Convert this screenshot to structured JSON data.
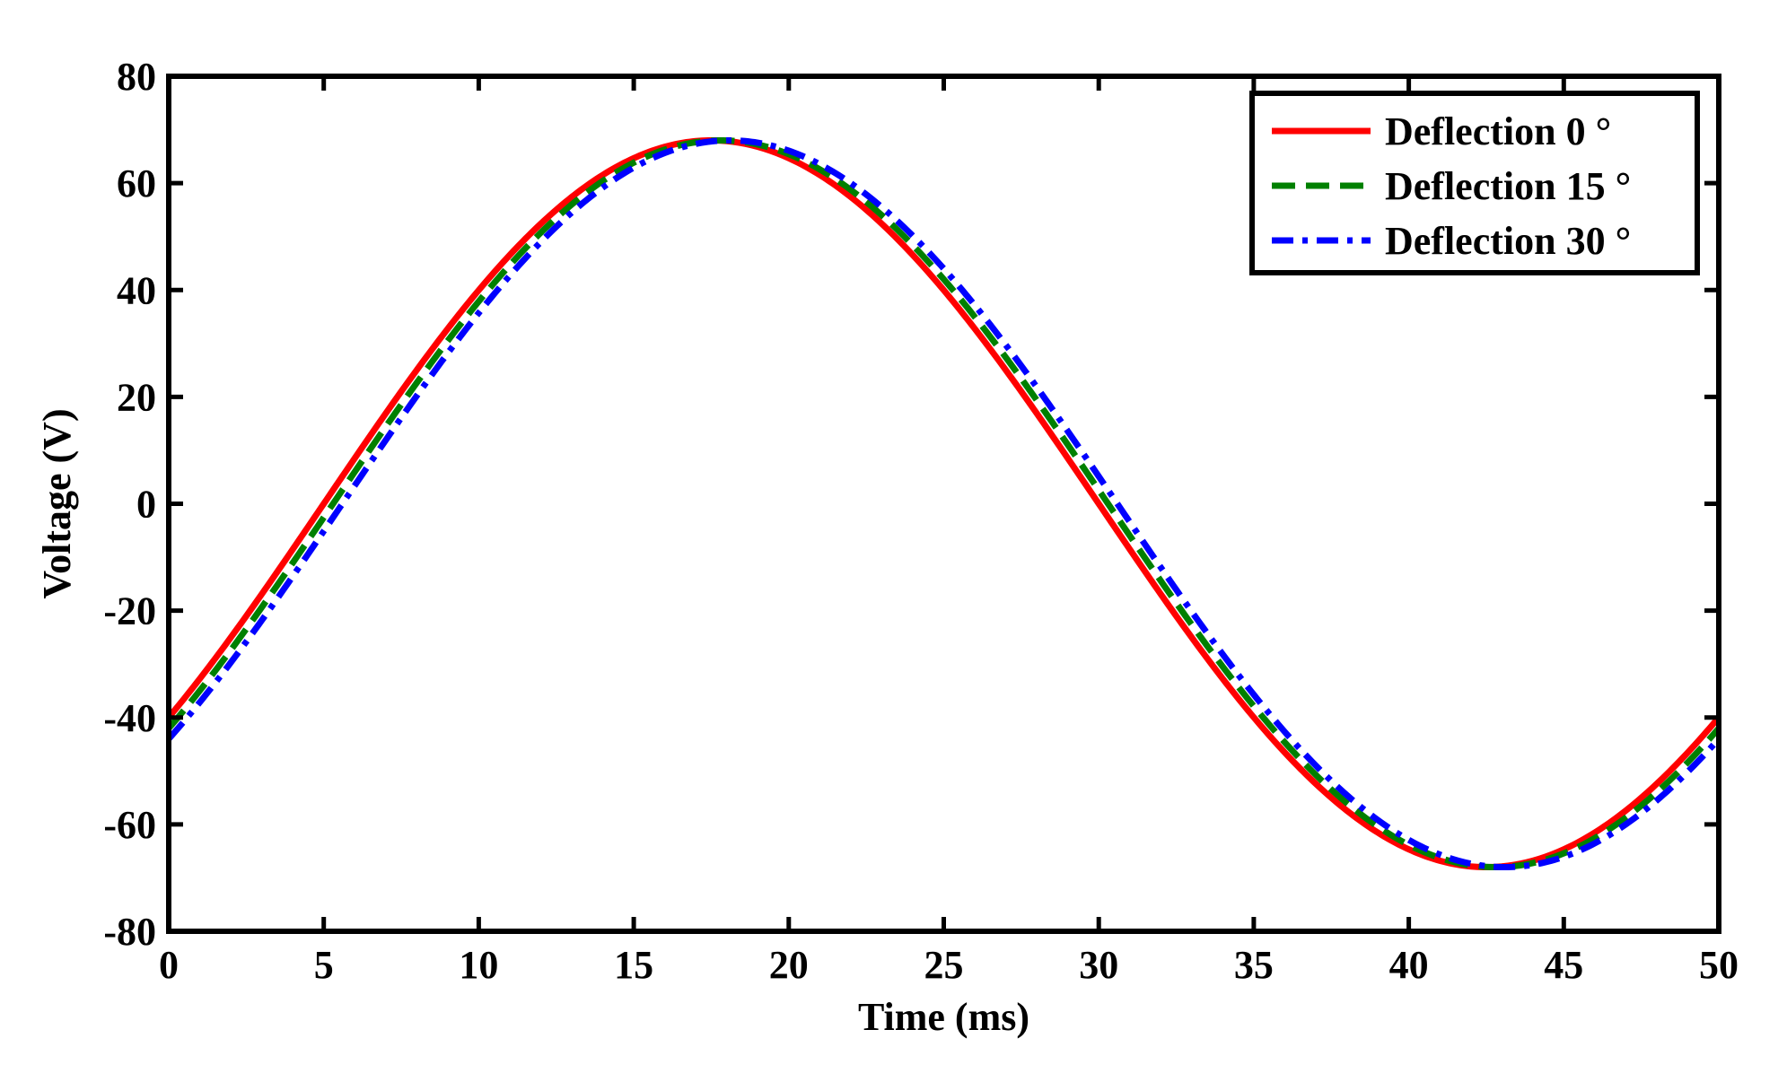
{
  "chart_data": {
    "type": "line",
    "title": "",
    "xlabel": "Time (ms)",
    "ylabel": "Voltage (V)",
    "xlim": [
      0,
      50
    ],
    "ylim": [
      -80,
      80
    ],
    "xticks": [
      0,
      5,
      10,
      15,
      20,
      25,
      30,
      35,
      40,
      45,
      50
    ],
    "yticks": [
      -80,
      -60,
      -40,
      -20,
      0,
      20,
      40,
      60,
      80
    ],
    "grid": false,
    "legend_position": "top-right",
    "series": [
      {
        "name": "Deflection 0 °",
        "color": "#ff0000",
        "style": "solid",
        "amplitude": 68,
        "period_ms": 50,
        "peak_time_ms": 17.5,
        "x": [
          0,
          2.5,
          5,
          7.5,
          10,
          12.5,
          15,
          17.5,
          20,
          22.5,
          25,
          27.5,
          30,
          32.5,
          35,
          37.5,
          40,
          42.5,
          45,
          47.5,
          50
        ],
        "y": [
          -40,
          -21,
          0,
          21,
          40,
          55,
          64.7,
          68,
          64.7,
          55,
          40,
          21,
          0,
          -21,
          -40,
          -55,
          -64.7,
          -68,
          -64.7,
          -55,
          -40
        ]
      },
      {
        "name": "Deflection 15 °",
        "color": "#008000",
        "style": "dashed",
        "amplitude": 68,
        "period_ms": 50,
        "peak_time_ms": 17.8,
        "x": [
          0,
          2.5,
          5,
          7.5,
          10,
          12.5,
          15,
          17.8,
          20,
          22.5,
          25,
          27.5,
          30,
          32.5,
          35,
          37.5,
          40,
          42.8,
          45,
          47.5,
          50
        ],
        "y": [
          -42.5,
          -24,
          -2.5,
          18.5,
          37.5,
          53.5,
          64,
          68,
          65.3,
          56.3,
          42,
          23.5,
          2.5,
          -18.5,
          -37.5,
          -53.5,
          -64,
          -68,
          -65.3,
          -56.3,
          -42.5
        ]
      },
      {
        "name": "Deflection 30 °",
        "color": "#0000ff",
        "style": "dashdot",
        "amplitude": 68,
        "period_ms": 50,
        "peak_time_ms": 18.1,
        "x": [
          0,
          2.5,
          5,
          7.5,
          10,
          12.5,
          15,
          18.1,
          20,
          22.5,
          25,
          27.5,
          30,
          32.5,
          35,
          37.5,
          40,
          43.1,
          45,
          47.5,
          50
        ],
        "y": [
          -45,
          -27,
          -5,
          16,
          35,
          52,
          63.3,
          68,
          65.9,
          57.5,
          44,
          26,
          5,
          -16,
          -35,
          -52,
          -63.3,
          -68,
          -65.9,
          -57.5,
          -45
        ]
      }
    ]
  }
}
